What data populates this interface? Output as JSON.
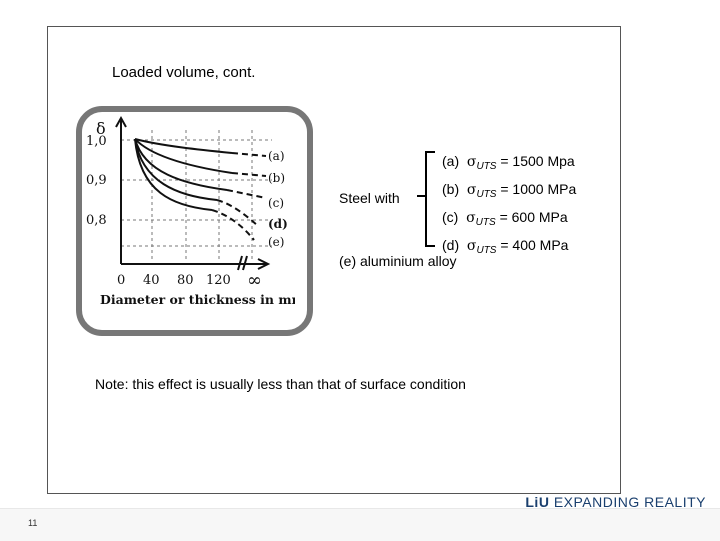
{
  "slide": {
    "title": "Loaded volume, cont.",
    "steel_label": "Steel with",
    "grades": [
      {
        "label": "(a)",
        "sigma": "σ",
        "sub": "UTS",
        "value": "= 1500 Mpa"
      },
      {
        "label": "(b)",
        "sigma": "σ",
        "sub": "UTS",
        "value": "= 1000 MPa"
      },
      {
        "label": "(c)",
        "sigma": "σ",
        "sub": "UTS",
        "value": "= 600 MPa"
      },
      {
        "label": "(d)",
        "sigma": "σ",
        "sub": "UTS",
        "value": "= 400 MPa"
      }
    ],
    "aluminium": "(e) aluminium alloy",
    "note": "Note: this effect is usually less than that of surface condition"
  },
  "figure": {
    "y_symbol": "δ",
    "y_ticks": [
      "1,0",
      "0,9",
      "0,8"
    ],
    "x_ticks": [
      "0",
      "40",
      "80",
      "120",
      "∞"
    ],
    "x_label": "Diameter or thickness in mm",
    "curve_labels": [
      "(a)",
      "(b)",
      "(c)",
      "(d)",
      "(e)"
    ]
  },
  "footer": {
    "logo_bold": "LiU",
    "logo_text": "EXPANDING REALITY",
    "page_number": "11"
  }
}
